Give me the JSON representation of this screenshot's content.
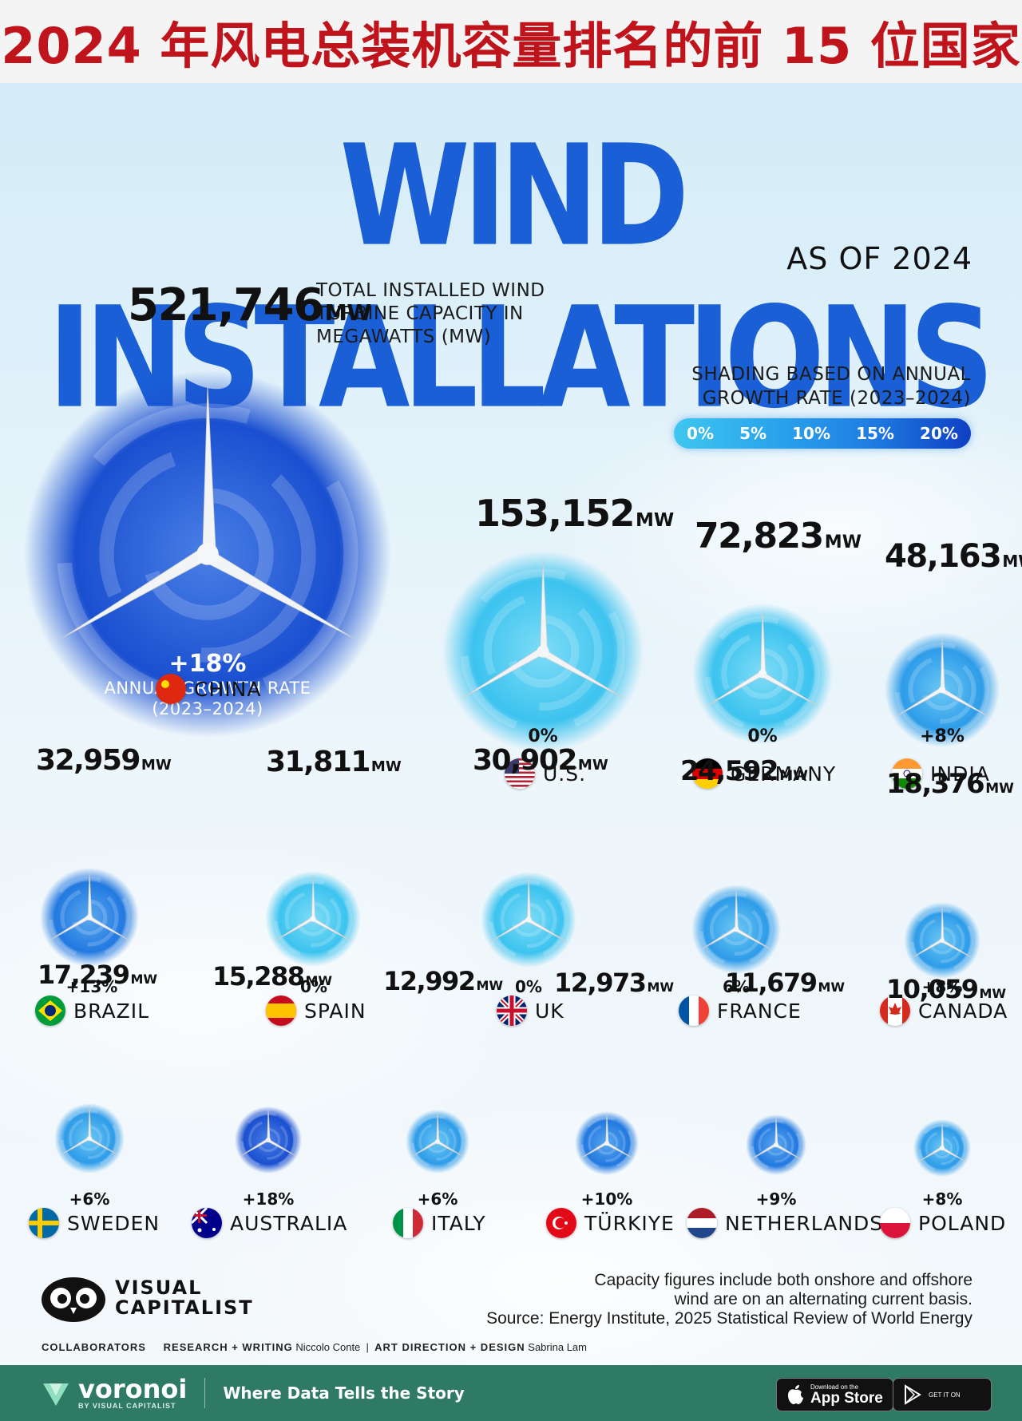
{
  "banner": {
    "title": "2024 年风电总装机容量排名的前 15 位国家"
  },
  "header": {
    "title": "WIND INSTALLATIONS",
    "subtitle": "AS OF 2024"
  },
  "description": {
    "capacity_note": "TOTAL INSTALLED WIND TURBINE CAPACITY IN MEGAWATTS (MW)"
  },
  "legend": {
    "title": "SHADING BASED ON ANNUAL GROWTH RATE (2023–2024)",
    "ticks": [
      "0%",
      "5%",
      "10%",
      "15%",
      "20%"
    ],
    "colors": [
      "#3fc6ef",
      "#29a3ec",
      "#1f7fe2",
      "#0f3fc4"
    ]
  },
  "china_note": {
    "growth": "+18%",
    "caption_line1": "ANNUAL GROWTH RATE",
    "caption_line2": "(2023–2024)"
  },
  "chart_data": {
    "type": "bubble",
    "title": "WIND INSTALLATIONS",
    "subtitle": "AS OF 2024",
    "unit": "MW",
    "countries": [
      {
        "name": "CHINA",
        "capacity_mw": 521746,
        "capacity_label": "521,746",
        "growth_label": "+18%",
        "growth_pct": 18
      },
      {
        "name": "U.S.",
        "capacity_mw": 153152,
        "capacity_label": "153,152",
        "growth_label": "0%",
        "growth_pct": 0
      },
      {
        "name": "GERMANY",
        "capacity_mw": 72823,
        "capacity_label": "72,823",
        "growth_label": "0%",
        "growth_pct": 0
      },
      {
        "name": "INDIA",
        "capacity_mw": 48163,
        "capacity_label": "48,163",
        "growth_label": "+8%",
        "growth_pct": 8
      },
      {
        "name": "BRAZIL",
        "capacity_mw": 32959,
        "capacity_label": "32,959",
        "growth_label": "+13%",
        "growth_pct": 13
      },
      {
        "name": "SPAIN",
        "capacity_mw": 31811,
        "capacity_label": "31,811",
        "growth_label": "0%",
        "growth_pct": 0
      },
      {
        "name": "UK",
        "capacity_mw": 30902,
        "capacity_label": "30,902",
        "growth_label": "0%",
        "growth_pct": 0
      },
      {
        "name": "FRANCE",
        "capacity_mw": 24592,
        "capacity_label": "24,592",
        "growth_label": "6%",
        "growth_pct": 6
      },
      {
        "name": "CANADA",
        "capacity_mw": 18376,
        "capacity_label": "18,376",
        "growth_label": "+8%",
        "growth_pct": 8
      },
      {
        "name": "SWEDEN",
        "capacity_mw": 17239,
        "capacity_label": "17,239",
        "growth_label": "+6%",
        "growth_pct": 6
      },
      {
        "name": "AUSTRALIA",
        "capacity_mw": 15288,
        "capacity_label": "15,288",
        "growth_label": "+18%",
        "growth_pct": 18
      },
      {
        "name": "ITALY",
        "capacity_mw": 12992,
        "capacity_label": "12,992",
        "growth_label": "+6%",
        "growth_pct": 6
      },
      {
        "name": "TÜRKIYE",
        "capacity_mw": 12973,
        "capacity_label": "12,973",
        "growth_label": "+10%",
        "growth_pct": 10
      },
      {
        "name": "NETHERLANDS",
        "capacity_mw": 11679,
        "capacity_label": "11,679",
        "growth_label": "+9%",
        "growth_pct": 9
      },
      {
        "name": "POLAND",
        "capacity_mw": 10059,
        "capacity_label": "10,059",
        "growth_label": "+8%",
        "growth_pct": 8
      }
    ]
  },
  "footnote": {
    "line1": "Capacity figures include both onshore and offshore",
    "line2": "wind are on an alternating current basis.",
    "source": "Source: Energy Institute, 2025 Statistical Review of World Energy"
  },
  "brand": {
    "line1": "VISUAL",
    "line2": "CAPITALIST"
  },
  "credits": {
    "collaborators": "COLLABORATORS",
    "research_label": "RESEARCH + WRITING",
    "research_name": "Niccolo Conte",
    "separator": "|",
    "design_label": "ART DIRECTION + DESIGN",
    "design_name": "Sabrina Lam"
  },
  "footer": {
    "brand": "voronoi",
    "brand_sub": "BY VISUAL CAPITALIST",
    "tagline": "Where Data Tells the Story",
    "app_store_small": "Download on the",
    "app_store_big": "App Store",
    "play_small": "GET IT ON"
  }
}
